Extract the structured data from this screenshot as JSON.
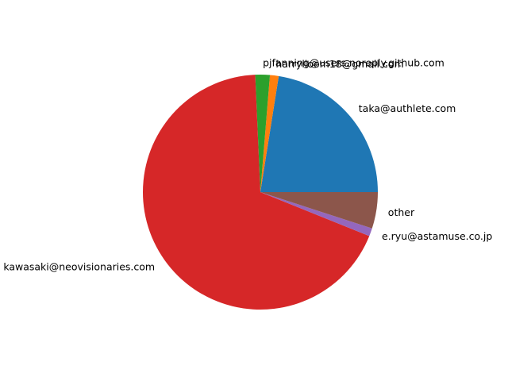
{
  "chart_data": {
    "type": "pie",
    "title": "",
    "start_angle_deg": 0,
    "direction": "counterclockwise",
    "slices": [
      {
        "label": "taka@authlete.com",
        "value": 22.5,
        "color": "#1f77b4"
      },
      {
        "label": "harrylloom18@gmail.com",
        "value": 1.2,
        "color": "#ff7f0e"
      },
      {
        "label": "pjfanning@users.noreply.github.com",
        "value": 2.0,
        "color": "#2ca02c"
      },
      {
        "label": "kawasaki@neovisionaries.com",
        "value": 68.2,
        "color": "#d62728"
      },
      {
        "label": "e.ryu@astamuse.co.jp",
        "value": 1.1,
        "color": "#9467bd"
      },
      {
        "label": "other",
        "value": 5.0,
        "color": "#8c564b"
      }
    ]
  }
}
